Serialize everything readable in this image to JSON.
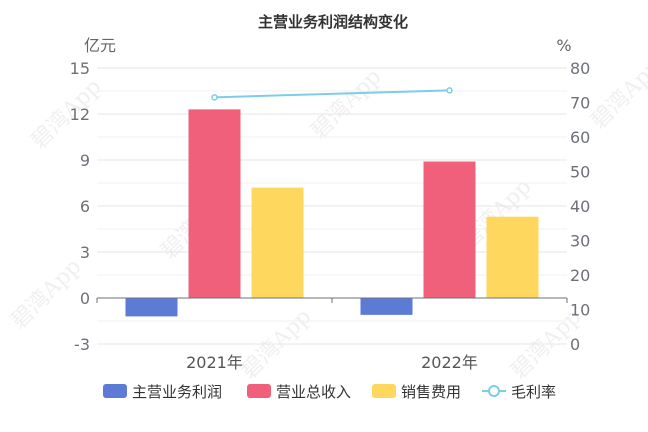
{
  "chart_data": {
    "type": "bar",
    "title": "主营业务利润结构变化",
    "categories": [
      "2021年",
      "2022年"
    ],
    "left_axis": {
      "unit": "亿元",
      "ylim": [
        -3,
        15
      ],
      "ticks": [
        -3,
        0,
        3,
        6,
        9,
        12,
        15
      ]
    },
    "right_axis": {
      "unit": "%",
      "ylim": [
        0,
        80
      ],
      "ticks": [
        0,
        10,
        20,
        30,
        40,
        50,
        60,
        70,
        80
      ]
    },
    "series": [
      {
        "name": "主营业务利润",
        "type": "bar",
        "axis": "left",
        "color": "#5b7bd5",
        "values": [
          -1.2,
          -1.1
        ]
      },
      {
        "name": "营业总收入",
        "type": "bar",
        "axis": "left",
        "color": "#f0607a",
        "values": [
          12.3,
          8.9
        ]
      },
      {
        "name": "销售费用",
        "type": "bar",
        "axis": "left",
        "color": "#fdd75e",
        "values": [
          7.2,
          5.3
        ]
      },
      {
        "name": "毛利率",
        "type": "line",
        "axis": "right",
        "color": "#7ccde8",
        "values": [
          71.5,
          73.5
        ]
      }
    ],
    "grid": true,
    "legend": "bottom"
  },
  "watermark": "碧湾App"
}
